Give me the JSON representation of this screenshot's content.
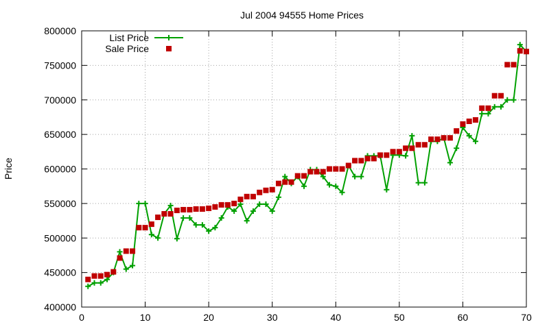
{
  "chart_data": {
    "type": "line",
    "title": "Jul 2004 94555 Home Prices",
    "xlabel": "",
    "ylabel": "Price",
    "xlim": [
      0,
      70
    ],
    "ylim": [
      400000,
      800000
    ],
    "x_ticks": [
      0,
      10,
      20,
      30,
      40,
      50,
      60,
      70
    ],
    "y_ticks": [
      400000,
      450000,
      500000,
      550000,
      600000,
      650000,
      700000,
      750000,
      800000
    ],
    "grid": true,
    "legend_position": "top-left",
    "series": [
      {
        "name": "List Price",
        "style": "line-with-plus-markers",
        "color": "#00a000",
        "points": [
          [
            1,
            430000
          ],
          [
            2,
            435000
          ],
          [
            3,
            435000
          ],
          [
            4,
            440000
          ],
          [
            5,
            450000
          ],
          [
            6,
            480000
          ],
          [
            7,
            455000
          ],
          [
            8,
            460000
          ],
          [
            9,
            550000
          ],
          [
            10,
            550000
          ],
          [
            11,
            505000
          ],
          [
            12,
            500000
          ],
          [
            13,
            535000
          ],
          [
            14,
            547000
          ],
          [
            15,
            499000
          ],
          [
            16,
            529000
          ],
          [
            17,
            529000
          ],
          [
            18,
            519000
          ],
          [
            19,
            519000
          ],
          [
            20,
            510000
          ],
          [
            21,
            515000
          ],
          [
            22,
            529000
          ],
          [
            23,
            545000
          ],
          [
            24,
            539000
          ],
          [
            25,
            549000
          ],
          [
            26,
            525000
          ],
          [
            27,
            539000
          ],
          [
            28,
            549000
          ],
          [
            29,
            549000
          ],
          [
            30,
            539000
          ],
          [
            31,
            559000
          ],
          [
            32,
            589000
          ],
          [
            33,
            579000
          ],
          [
            34,
            589000
          ],
          [
            35,
            575000
          ],
          [
            36,
            599000
          ],
          [
            37,
            599000
          ],
          [
            38,
            589000
          ],
          [
            39,
            577000
          ],
          [
            40,
            575000
          ],
          [
            41,
            566000
          ],
          [
            42,
            605000
          ],
          [
            43,
            589000
          ],
          [
            44,
            589000
          ],
          [
            45,
            619000
          ],
          [
            46,
            619000
          ],
          [
            47,
            619000
          ],
          [
            48,
            570000
          ],
          [
            49,
            620000
          ],
          [
            50,
            620000
          ],
          [
            51,
            619000
          ],
          [
            52,
            648000
          ],
          [
            53,
            580000
          ],
          [
            54,
            580000
          ],
          [
            55,
            640000
          ],
          [
            56,
            640000
          ],
          [
            57,
            645000
          ],
          [
            58,
            609000
          ],
          [
            59,
            630000
          ],
          [
            60,
            660000
          ],
          [
            61,
            648000
          ],
          [
            62,
            640000
          ],
          [
            63,
            680000
          ],
          [
            64,
            680000
          ],
          [
            65,
            690000
          ],
          [
            66,
            690000
          ],
          [
            67,
            700000
          ],
          [
            68,
            700000
          ],
          [
            69,
            780000
          ],
          [
            70,
            770000
          ]
        ]
      },
      {
        "name": "Sale Price",
        "style": "square-markers",
        "color": "#c00000",
        "points": [
          [
            1,
            440000
          ],
          [
            2,
            445000
          ],
          [
            3,
            445000
          ],
          [
            4,
            447000
          ],
          [
            5,
            451000
          ],
          [
            6,
            471000
          ],
          [
            7,
            481000
          ],
          [
            8,
            481000
          ],
          [
            9,
            515000
          ],
          [
            10,
            515000
          ],
          [
            11,
            520000
          ],
          [
            12,
            530000
          ],
          [
            13,
            535000
          ],
          [
            14,
            535000
          ],
          [
            15,
            540000
          ],
          [
            16,
            541000
          ],
          [
            17,
            541000
          ],
          [
            18,
            542000
          ],
          [
            19,
            542000
          ],
          [
            20,
            543000
          ],
          [
            21,
            545000
          ],
          [
            22,
            548000
          ],
          [
            23,
            548000
          ],
          [
            24,
            550000
          ],
          [
            25,
            556000
          ],
          [
            26,
            560000
          ],
          [
            27,
            560000
          ],
          [
            28,
            566000
          ],
          [
            29,
            569000
          ],
          [
            30,
            570000
          ],
          [
            31,
            579000
          ],
          [
            32,
            581000
          ],
          [
            33,
            581000
          ],
          [
            34,
            590000
          ],
          [
            35,
            590000
          ],
          [
            36,
            596000
          ],
          [
            37,
            596000
          ],
          [
            38,
            596000
          ],
          [
            39,
            600000
          ],
          [
            40,
            600000
          ],
          [
            41,
            600000
          ],
          [
            42,
            605000
          ],
          [
            43,
            612000
          ],
          [
            44,
            612000
          ],
          [
            45,
            615000
          ],
          [
            46,
            615000
          ],
          [
            47,
            620000
          ],
          [
            48,
            620000
          ],
          [
            49,
            625000
          ],
          [
            50,
            625000
          ],
          [
            51,
            630000
          ],
          [
            52,
            630000
          ],
          [
            53,
            635000
          ],
          [
            54,
            635000
          ],
          [
            55,
            643000
          ],
          [
            56,
            643000
          ],
          [
            57,
            645000
          ],
          [
            58,
            645000
          ],
          [
            59,
            655000
          ],
          [
            60,
            665000
          ],
          [
            61,
            669000
          ],
          [
            62,
            671000
          ],
          [
            63,
            688000
          ],
          [
            64,
            688000
          ],
          [
            65,
            706000
          ],
          [
            66,
            706000
          ],
          [
            67,
            751000
          ],
          [
            68,
            751000
          ],
          [
            69,
            771000
          ],
          [
            70,
            770000
          ]
        ]
      }
    ]
  }
}
